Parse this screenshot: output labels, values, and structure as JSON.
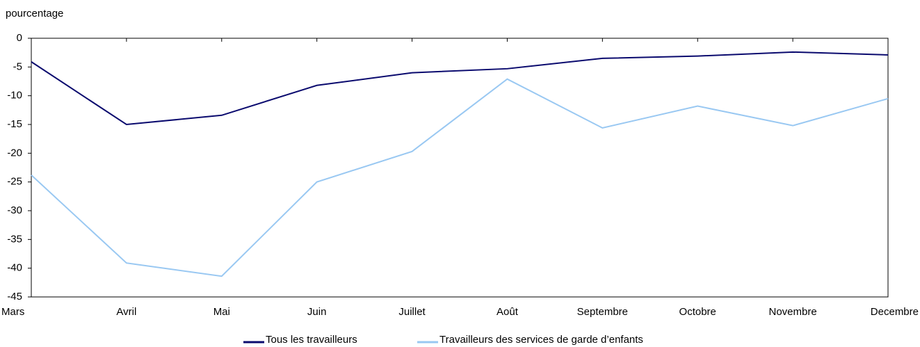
{
  "chart_data": {
    "type": "line",
    "y_label": "pourcentage",
    "categories": [
      "Mars",
      "Avril",
      "Mai",
      "Juin",
      "Juillet",
      "Août",
      "Septembre",
      "Octobre",
      "Novembre",
      "Decembre"
    ],
    "series": [
      {
        "name": "Tous les travailleurs",
        "color": "#0a0a6e",
        "values": [
          -4.1,
          -15.0,
          -13.4,
          -8.2,
          -6.0,
          -5.3,
          -3.5,
          -3.1,
          -2.4,
          -2.9
        ]
      },
      {
        "name": "Travailleurs des services de garde d’enfants",
        "color": "#99c8f2",
        "values": [
          -23.8,
          -39.1,
          -41.4,
          -25.0,
          -19.7,
          -7.1,
          -15.6,
          -11.8,
          -15.2,
          -10.5
        ]
      }
    ],
    "ylim": [
      -45,
      0
    ],
    "yticks": [
      0,
      -5,
      -10,
      -15,
      -20,
      -25,
      -30,
      -35,
      -40,
      -45
    ],
    "legend": "bottom"
  }
}
